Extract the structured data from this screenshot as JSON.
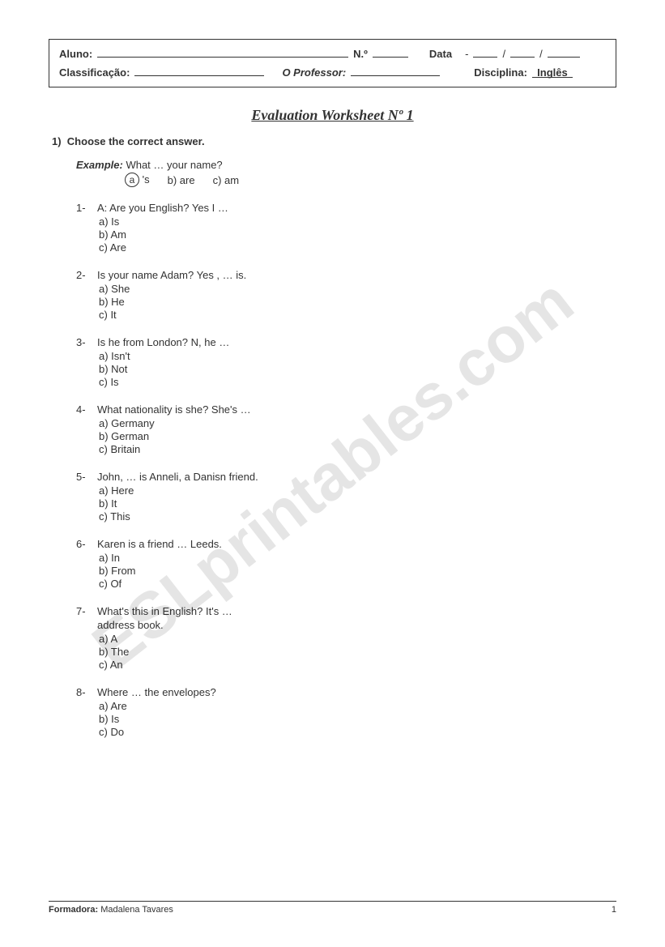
{
  "header": {
    "aluno_label": "Aluno:",
    "numero_label": "N.º",
    "data_label": "Data",
    "data_sep": "-",
    "data_slash": "/",
    "classificacao_label": "Classificação:",
    "professor_label": "O Professor:",
    "disciplina_label": "Disciplina:",
    "disciplina_value": "Inglês"
  },
  "title": "Evaluation Worksheet Nº 1",
  "instruction_num": "1)",
  "instruction": "Choose the correct answer.",
  "example": {
    "label": "Example:",
    "text": "What … your name?",
    "opt_a": "a",
    "opt_a_text": "'s",
    "opt_b": "b) are",
    "opt_c": "c) am"
  },
  "questions": [
    {
      "num": "1-",
      "prompt": "A: Are you English? Yes I …",
      "extra": "",
      "opts": [
        "a)  Is",
        "b)  Am",
        "c)  Are"
      ]
    },
    {
      "num": "2-",
      "prompt": "Is your name Adam? Yes , … is.",
      "extra": "",
      "opts": [
        "a)  She",
        "b)  He",
        "c)  It"
      ]
    },
    {
      "num": "3-",
      "prompt": "Is he from London? N, he …",
      "extra": "",
      "opts": [
        "a)  Isn't",
        "b)  Not",
        "c)  Is"
      ]
    },
    {
      "num": "4-",
      "prompt": "What nationality is she? She's …",
      "extra": "",
      "opts": [
        "a)  Germany",
        "b)  German",
        "c)  Britain"
      ]
    },
    {
      "num": "5-",
      "prompt": "John, … is Anneli, a Danisn friend.",
      "extra": "",
      "opts": [
        "a)  Here",
        "b)  It",
        "c)  This"
      ]
    },
    {
      "num": "6-",
      "prompt": "Karen is a friend … Leeds.",
      "extra": "",
      "opts": [
        "a)  In",
        "b)  From",
        "c)  Of"
      ]
    },
    {
      "num": "7-",
      "prompt": "What's this in English? It's …",
      "extra": "address book.",
      "opts": [
        "a)  A",
        "b)  The",
        "c)  An"
      ]
    },
    {
      "num": "8-",
      "prompt": "Where … the envelopes?",
      "extra": "",
      "opts": [
        "a)  Are",
        "b)  Is",
        "c)  Do"
      ]
    }
  ],
  "footer": {
    "label": "Formadora:",
    "name": "Madalena Tavares",
    "page": "1"
  },
  "watermark": "ESLprintables.com"
}
